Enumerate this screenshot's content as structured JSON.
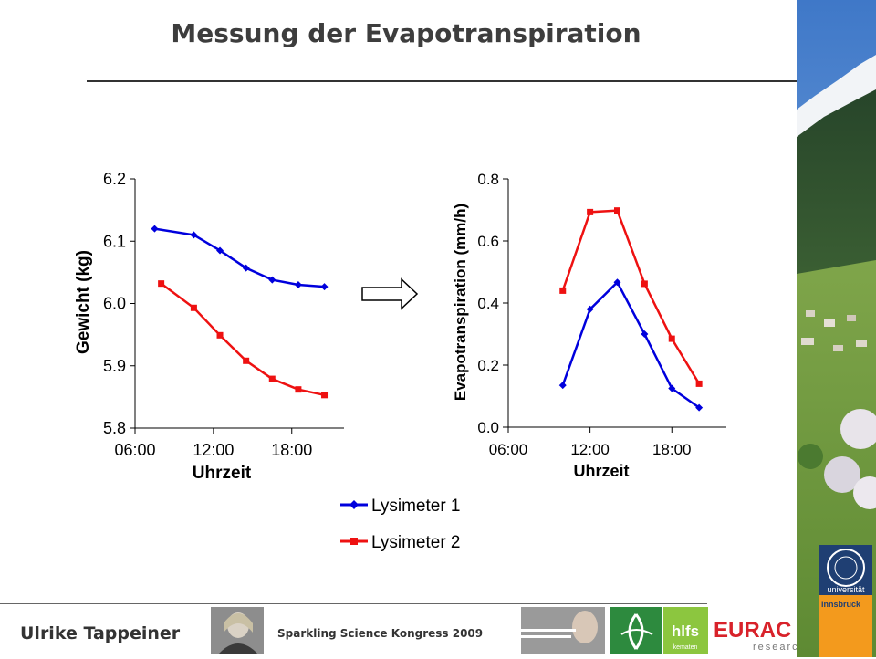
{
  "slide": {
    "title": "Messung der Evapotranspiration",
    "author": "Ulrike Tappeiner",
    "congress": "Sparkling Science Kongress 2009",
    "logos": {
      "university_line1": "universität",
      "university_line2": "innsbruck",
      "hlfs": "hlfs",
      "hlfs_sub": "kematen",
      "eurac": "EURAC",
      "eurac_sub": "research"
    },
    "colors": {
      "series1": "#0000dd",
      "series2": "#ee1111",
      "title": "#3d3d3d"
    }
  },
  "chart_data": [
    {
      "type": "line",
      "xlabel": "Uhrzeit",
      "ylabel": "Gewicht (kg)",
      "xlim": [
        6,
        22
      ],
      "ylim": [
        5.8,
        6.2
      ],
      "xticks": [
        6,
        12,
        18
      ],
      "xtick_labels": [
        "06:00",
        "12:00",
        "18:00"
      ],
      "yticks": [
        5.8,
        5.9,
        6.0,
        6.1,
        6.2
      ],
      "ytick_labels": [
        "5.8",
        "5.9",
        "6.0",
        "6.1",
        "6.2"
      ],
      "grid": false,
      "series": [
        {
          "name": "Lysimeter 1",
          "color": "#0000dd",
          "marker": "diamond",
          "x": [
            7.5,
            10.5,
            12.5,
            14.5,
            16.5,
            18.5,
            20.5
          ],
          "y": [
            6.12,
            6.11,
            6.085,
            6.057,
            6.038,
            6.03,
            6.027
          ]
        },
        {
          "name": "Lysimeter 2",
          "color": "#ee1111",
          "marker": "square",
          "x": [
            8.0,
            10.5,
            12.5,
            14.5,
            16.5,
            18.5,
            20.5
          ],
          "y": [
            6.032,
            5.993,
            5.949,
            5.908,
            5.879,
            5.862,
            5.853
          ]
        }
      ]
    },
    {
      "type": "line",
      "xlabel": "Uhrzeit",
      "ylabel": "Evapotranspiration (mm/h)",
      "xlim": [
        6,
        22
      ],
      "ylim": [
        0.0,
        0.8
      ],
      "xticks": [
        6,
        12,
        18
      ],
      "xtick_labels": [
        "06:00",
        "12:00",
        "18:00"
      ],
      "yticks": [
        0.0,
        0.2,
        0.4,
        0.6,
        0.8
      ],
      "ytick_labels": [
        "0.0",
        "0.2",
        "0.4",
        "0.6",
        "0.8"
      ],
      "grid": false,
      "series": [
        {
          "name": "Lysimeter 1",
          "color": "#0000dd",
          "marker": "diamond",
          "x": [
            10.0,
            12.0,
            14.0,
            16.0,
            18.0,
            20.0
          ],
          "y": [
            0.135,
            0.38,
            0.467,
            0.3,
            0.125,
            0.063
          ]
        },
        {
          "name": "Lysimeter 2",
          "color": "#ee1111",
          "marker": "square",
          "x": [
            10.0,
            12.0,
            14.0,
            16.0,
            18.0,
            20.0
          ],
          "y": [
            0.44,
            0.693,
            0.698,
            0.462,
            0.285,
            0.14
          ]
        }
      ]
    }
  ],
  "legend": [
    {
      "label": "Lysimeter 1",
      "color": "#0000dd",
      "marker": "diamond"
    },
    {
      "label": "Lysimeter 2",
      "color": "#ee1111",
      "marker": "square"
    }
  ]
}
